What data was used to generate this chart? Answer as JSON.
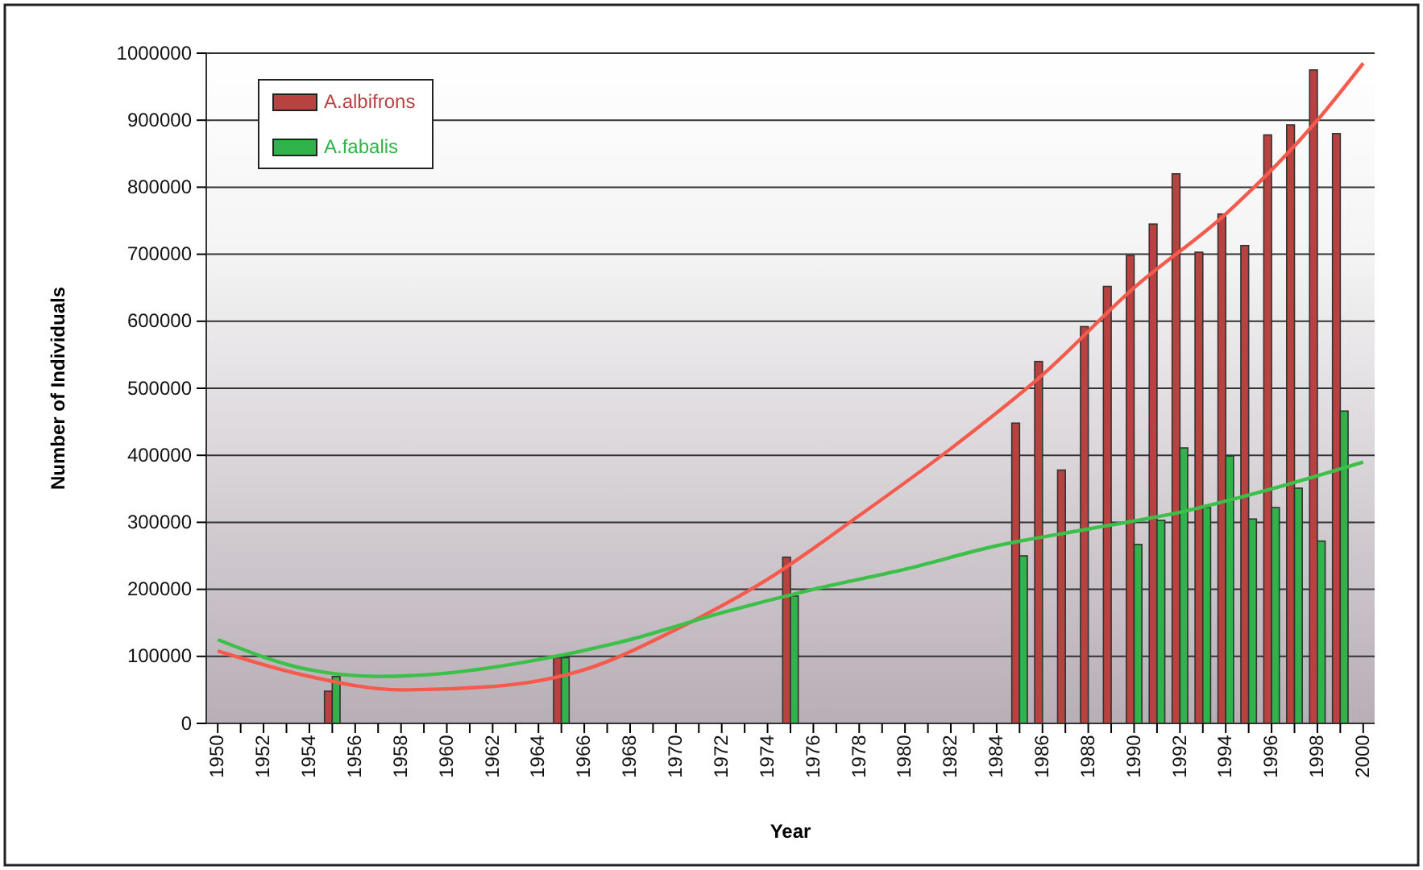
{
  "chart_data": {
    "type": "bar",
    "xlabel": "Year",
    "ylabel": "Number of Individuals",
    "x": [
      1955,
      1965,
      1975,
      1985,
      1986,
      1987,
      1988,
      1989,
      1990,
      1991,
      1992,
      1993,
      1994,
      1995,
      1996,
      1997,
      1998,
      1999
    ],
    "xlim": [
      1949.5,
      2000.5
    ],
    "xticks": [
      1950,
      {
        "value": 1951,
        "label": null
      },
      1952,
      {
        "value": 1953,
        "label": null
      },
      1954,
      {
        "value": 1955,
        "label": null
      },
      1956,
      {
        "value": 1957,
        "label": null
      },
      1958,
      {
        "value": 1959,
        "label": null
      },
      1960,
      {
        "value": 1961,
        "label": null
      },
      1962,
      {
        "value": 1963,
        "label": null
      },
      1964,
      {
        "value": 1965,
        "label": null
      },
      1966,
      {
        "value": 1967,
        "label": null
      },
      1968,
      {
        "value": 1969,
        "label": null
      },
      1970,
      {
        "value": 1971,
        "label": null
      },
      1972,
      {
        "value": 1973,
        "label": null
      },
      1974,
      {
        "value": 1975,
        "label": null
      },
      1976,
      {
        "value": 1977,
        "label": null
      },
      1978,
      {
        "value": 1979,
        "label": null
      },
      1980,
      {
        "value": 1981,
        "label": null
      },
      1982,
      {
        "value": 1983,
        "label": null
      },
      1984,
      {
        "value": 1985,
        "label": null
      },
      1986,
      {
        "value": 1987,
        "label": null
      },
      1988,
      {
        "value": 1989,
        "label": null
      },
      1990,
      {
        "value": 1991,
        "label": null
      },
      1992,
      {
        "value": 1993,
        "label": null
      },
      1994,
      {
        "value": 1995,
        "label": null
      },
      1996,
      {
        "value": 1997,
        "label": null
      },
      1998,
      {
        "value": 1999,
        "label": null
      },
      2000
    ],
    "ylim": [
      0,
      1000000
    ],
    "yticks": [
      0,
      100000,
      200000,
      300000,
      400000,
      500000,
      600000,
      700000,
      800000,
      900000,
      1000000
    ],
    "grid": "y",
    "legend": "top left",
    "series": [
      {
        "name": "A.albifrons",
        "color": "#b8423f",
        "values": [
          48000,
          98000,
          248000,
          448000,
          540000,
          378000,
          592000,
          652000,
          698000,
          745000,
          820000,
          703000,
          760000,
          713000,
          878000,
          893000,
          975000,
          880000
        ]
      },
      {
        "name": "A.fabalis",
        "color": "#2fb34a",
        "values": [
          70000,
          98000,
          190000,
          250000,
          null,
          null,
          null,
          null,
          267000,
          303000,
          411000,
          322000,
          399000,
          305000,
          322000,
          351000,
          272000,
          466000
        ]
      },
      {
        "type": "line",
        "color": "#f45b4c",
        "x": [
          1950,
          1954,
          1958,
          1962,
          1966,
          1970,
          1974,
          1978,
          1982,
          1986,
          1990,
          1994,
          1998,
          2000
        ],
        "values": [
          108000,
          70000,
          50000,
          55000,
          80000,
          140000,
          215000,
          310000,
          410000,
          520000,
          650000,
          760000,
          900000,
          985000
        ]
      },
      {
        "type": "line",
        "color": "#3cc04a",
        "x": [
          1950,
          1954,
          1957,
          1960,
          1964,
          1968,
          1972,
          1976,
          1980,
          1984,
          1988,
          1992,
          1996,
          2000
        ],
        "values": [
          125000,
          80000,
          70000,
          75000,
          95000,
          125000,
          165000,
          200000,
          230000,
          265000,
          290000,
          315000,
          350000,
          390000
        ]
      }
    ]
  }
}
